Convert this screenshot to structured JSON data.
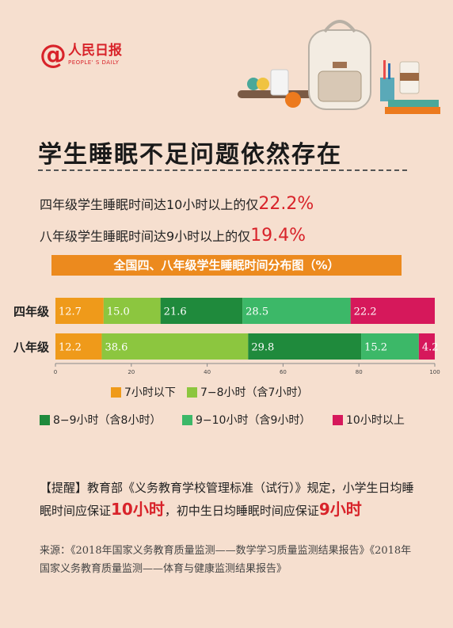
{
  "logo": {
    "symbol": "@",
    "cn": "人民日报",
    "en": "PEOPLE' S DAILY"
  },
  "headline": "学生睡眠不足问题依然存在",
  "stats": [
    {
      "text": "四年级学生睡眠时间达10小时以上的仅",
      "pct": "22.2%"
    },
    {
      "text": "八年级学生睡眠时间达9小时以上的仅",
      "pct": "19.4%"
    }
  ],
  "chart_data": {
    "type": "bar",
    "orientation": "horizontal-stacked",
    "title": "全国四、八年级学生睡眠时间分布图（%）",
    "categories": [
      "四年级",
      "八年级"
    ],
    "series": [
      {
        "name": "7小时以下",
        "color": "#ef9a1a",
        "values": [
          12.7,
          12.2
        ],
        "labels": [
          "12.7",
          "12.2"
        ]
      },
      {
        "name": "7−8小时（含7小时）",
        "color": "#8cc63f",
        "values": [
          15.0,
          38.6
        ],
        "labels": [
          "15.0",
          "38.6"
        ]
      },
      {
        "name": "8−9小时（含8小时）",
        "color": "#1f8a3c",
        "values": [
          21.6,
          29.8
        ],
        "labels": [
          "21.6",
          "29.8"
        ]
      },
      {
        "name": "9−10小时（含9小时）",
        "color": "#3cb868",
        "values": [
          28.5,
          15.2
        ],
        "labels": [
          "28.5",
          "15.2"
        ]
      },
      {
        "name": "10小时以上",
        "color": "#d6185b",
        "values": [
          22.2,
          4.2
        ],
        "labels": [
          "22.2",
          "4.2"
        ]
      }
    ],
    "xlim": [
      0,
      100
    ],
    "xticks": [
      "0",
      "20",
      "40",
      "60",
      "80",
      "100"
    ]
  },
  "note": {
    "prefix": "【提醒】教育部《义务教育学校管理标准（试行）》规定，小学生日均睡眠时间应保证",
    "hl1": "10小时",
    "middle": "，初中生日均睡眠时间应保证",
    "hl2": "9小时"
  },
  "source": "来源：《2018年国家义务教育质量监测——数学学习质量监测结果报告》《2018年国家义务教育质量监测——体育与健康监测结果报告》"
}
